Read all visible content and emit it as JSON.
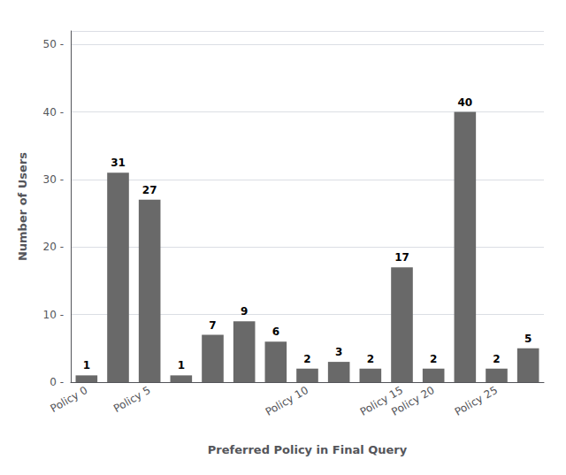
{
  "chart_data": {
    "type": "bar",
    "xlabel": "Preferred Policy in Final Query",
    "ylabel": "Number of Users",
    "categories": [
      "Policy 0",
      null,
      "Policy 5",
      null,
      null,
      null,
      null,
      "Policy 10",
      null,
      null,
      "Policy 15",
      "Policy 20",
      null,
      "Policy 25",
      null
    ],
    "values": [
      1,
      31,
      27,
      1,
      7,
      9,
      6,
      2,
      3,
      2,
      17,
      2,
      40,
      2,
      5
    ],
    "color": "#696969",
    "data_labels": true,
    "ylim": [
      0,
      52
    ],
    "yticks": [
      {
        "value": 0,
        "label": "0 -"
      },
      {
        "value": 10,
        "label": "10 -"
      },
      {
        "value": 20,
        "label": "20 -"
      },
      {
        "value": 30,
        "label": "30 -"
      },
      {
        "value": 40,
        "label": "40 -"
      },
      {
        "value": 50,
        "label": "50 -"
      }
    ],
    "grid": true
  }
}
